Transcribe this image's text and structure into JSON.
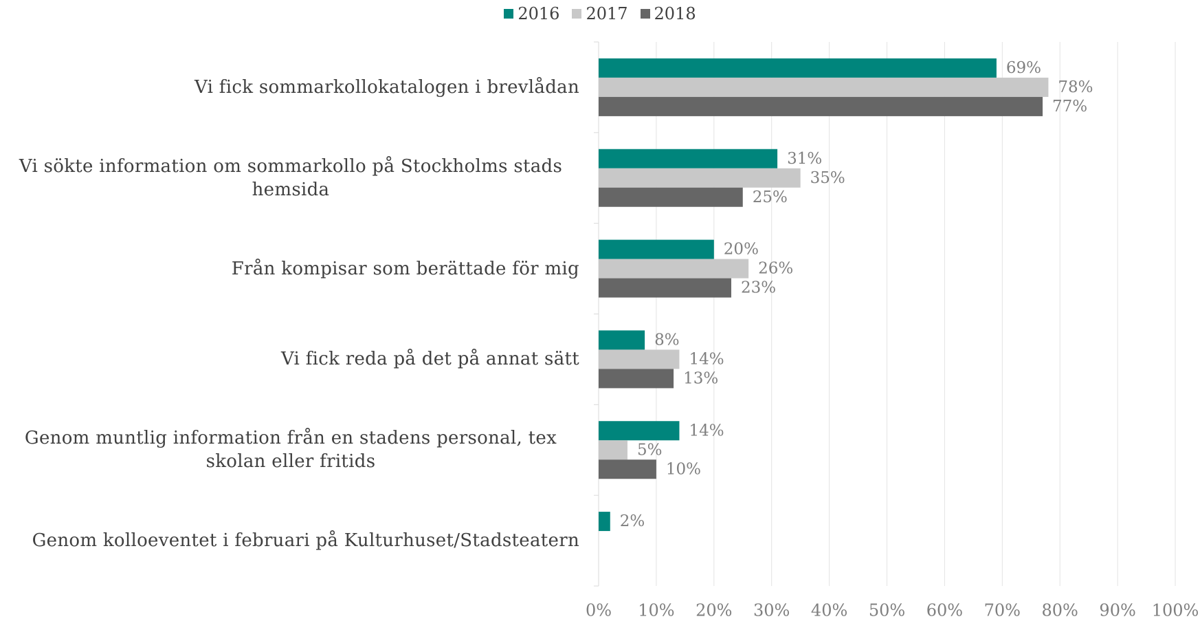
{
  "chart_data": {
    "type": "bar",
    "orientation": "horizontal",
    "categories": [
      "Vi fick sommarkollokatalogen i brevlådan",
      "Vi sökte information om sommarkollo på Stockholms stads hemsida",
      "Från kompisar som berättade för mig",
      "Vi fick reda på det på annat sätt",
      "Genom muntlig information från en stadens personal, tex skolan eller fritids",
      "Genom kolloeventet i februari på Kulturhuset/Stadsteatern"
    ],
    "series": [
      {
        "name": "2016",
        "color": "#00857c",
        "values": [
          69,
          31,
          20,
          8,
          14,
          2
        ],
        "value_labels": [
          "69%",
          "31%",
          "20%",
          "8%",
          "14%",
          "2%"
        ]
      },
      {
        "name": "2017",
        "color": "#c8c8c8",
        "values": [
          78,
          35,
          26,
          14,
          5,
          null
        ],
        "value_labels": [
          "78%",
          "35%",
          "26%",
          "14%",
          "5%",
          null
        ]
      },
      {
        "name": "2018",
        "color": "#666666",
        "values": [
          77,
          25,
          23,
          13,
          10,
          null
        ],
        "value_labels": [
          "77%",
          "25%",
          "23%",
          "13%",
          "10%",
          null
        ]
      }
    ],
    "xlim": [
      0,
      100
    ],
    "xticks": [
      {
        "value": 0,
        "label": "0%"
      },
      {
        "value": 10,
        "label": "10%"
      },
      {
        "value": 20,
        "label": "20%"
      },
      {
        "value": 30,
        "label": "30%"
      },
      {
        "value": 40,
        "label": "40%"
      },
      {
        "value": 50,
        "label": "50%"
      },
      {
        "value": 60,
        "label": "60%"
      },
      {
        "value": 70,
        "label": "70%"
      },
      {
        "value": 80,
        "label": "80%"
      },
      {
        "value": 90,
        "label": "90%"
      },
      {
        "value": 100,
        "label": "100%"
      }
    ],
    "grid": true,
    "legend": "top"
  }
}
